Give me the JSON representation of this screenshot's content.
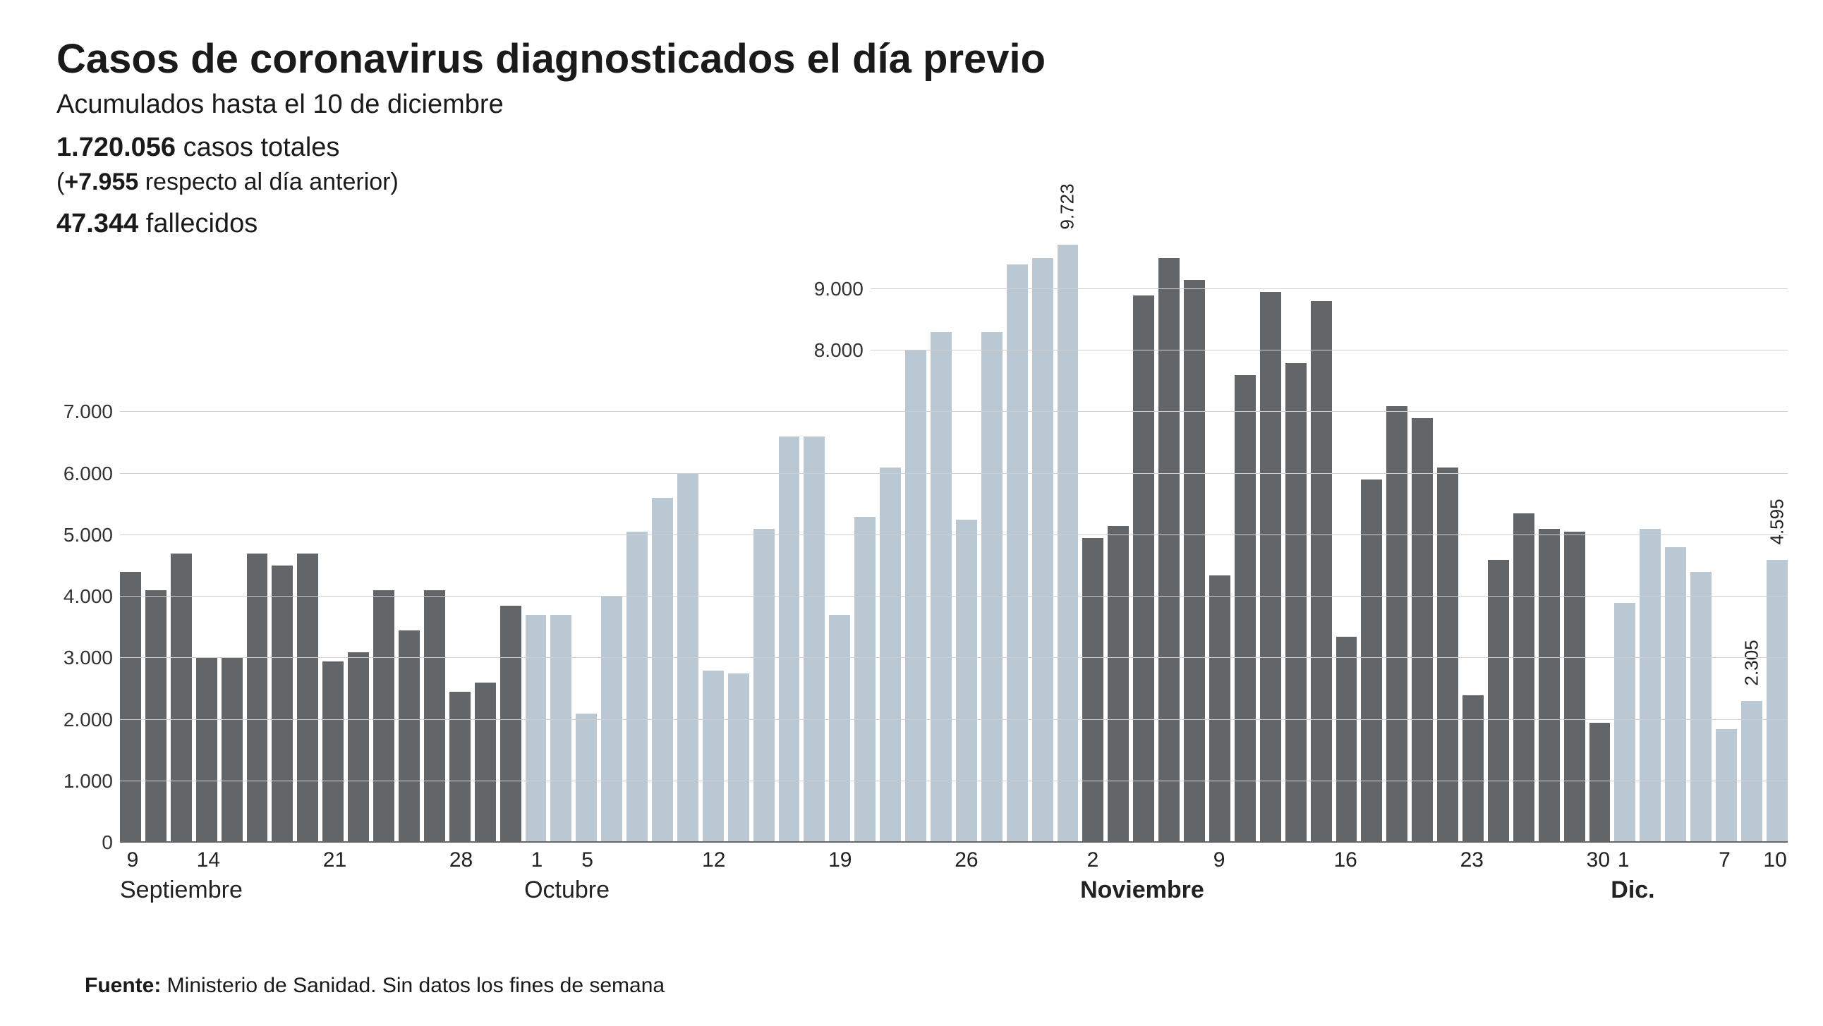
{
  "title": "Casos de coronavirus diagnosticados el día previo",
  "subtitle": "Acumulados hasta el 10 de diciembre",
  "total_cases": {
    "num": "1.720.056",
    "label": "casos totales"
  },
  "daily_change": {
    "prefix": "(",
    "num": "+7.955",
    "label": "respecto al día anterior)"
  },
  "deaths": {
    "num": "47.344",
    "label": "fallecidos"
  },
  "source": {
    "bold": "Fuente:",
    "text": "Ministerio de Sanidad. Sin datos los fines de semana"
  },
  "chart": {
    "type": "bar",
    "background_color": "#ffffff",
    "grid_color": "#d0d0d0",
    "baseline_color": "#666666",
    "bar_color_dark": "#636669",
    "bar_color_light": "#b9c8d3",
    "title_fontsize": 58,
    "label_fontsize": 28,
    "tick_fontsize": 30,
    "month_fontsize": 34,
    "ylim": [
      0,
      9800
    ],
    "left_y_ticks": [
      0,
      1000,
      2000,
      3000,
      4000,
      5000,
      6000,
      7000
    ],
    "left_y_tick_labels": [
      "0",
      "1.000",
      "2.000",
      "3.000",
      "4.000",
      "5.000",
      "6.000",
      "7.000"
    ],
    "float_y_ticks": [
      8000,
      9000
    ],
    "float_y_tick_labels": [
      "8.000",
      "9.000"
    ],
    "peak_label": "9.723",
    "last_two_labels": [
      "2.305",
      "4.595"
    ],
    "bars": [
      {
        "v": 4400,
        "c": "dark"
      },
      {
        "v": 4100,
        "c": "dark"
      },
      {
        "v": 4700,
        "c": "dark"
      },
      {
        "v": 3000,
        "c": "dark"
      },
      {
        "v": 3000,
        "c": "dark"
      },
      {
        "v": 4700,
        "c": "dark"
      },
      {
        "v": 4500,
        "c": "dark"
      },
      {
        "v": 4700,
        "c": "dark"
      },
      {
        "v": 2950,
        "c": "dark"
      },
      {
        "v": 3100,
        "c": "dark"
      },
      {
        "v": 4100,
        "c": "dark"
      },
      {
        "v": 3450,
        "c": "dark"
      },
      {
        "v": 4100,
        "c": "dark"
      },
      {
        "v": 2450,
        "c": "dark"
      },
      {
        "v": 2600,
        "c": "dark"
      },
      {
        "v": 3850,
        "c": "dark"
      },
      {
        "v": 3700,
        "c": "light"
      },
      {
        "v": 3700,
        "c": "light"
      },
      {
        "v": 2100,
        "c": "light"
      },
      {
        "v": 4000,
        "c": "light"
      },
      {
        "v": 5050,
        "c": "light"
      },
      {
        "v": 5600,
        "c": "light"
      },
      {
        "v": 6000,
        "c": "light"
      },
      {
        "v": 2800,
        "c": "light"
      },
      {
        "v": 2750,
        "c": "light"
      },
      {
        "v": 5100,
        "c": "light"
      },
      {
        "v": 6600,
        "c": "light"
      },
      {
        "v": 6600,
        "c": "light"
      },
      {
        "v": 3700,
        "c": "light"
      },
      {
        "v": 5300,
        "c": "light"
      },
      {
        "v": 6100,
        "c": "light"
      },
      {
        "v": 8000,
        "c": "light"
      },
      {
        "v": 8300,
        "c": "light"
      },
      {
        "v": 5250,
        "c": "light"
      },
      {
        "v": 8300,
        "c": "light"
      },
      {
        "v": 9400,
        "c": "light"
      },
      {
        "v": 9500,
        "c": "light"
      },
      {
        "v": 9723,
        "c": "light",
        "label": "peak"
      },
      {
        "v": 4950,
        "c": "dark"
      },
      {
        "v": 5150,
        "c": "dark"
      },
      {
        "v": 8900,
        "c": "dark"
      },
      {
        "v": 9500,
        "c": "dark"
      },
      {
        "v": 9150,
        "c": "dark"
      },
      {
        "v": 4350,
        "c": "dark"
      },
      {
        "v": 7600,
        "c": "dark"
      },
      {
        "v": 8950,
        "c": "dark"
      },
      {
        "v": 7800,
        "c": "dark"
      },
      {
        "v": 8800,
        "c": "dark"
      },
      {
        "v": 3350,
        "c": "dark"
      },
      {
        "v": 5900,
        "c": "dark"
      },
      {
        "v": 7100,
        "c": "dark"
      },
      {
        "v": 6900,
        "c": "dark"
      },
      {
        "v": 6100,
        "c": "dark"
      },
      {
        "v": 2400,
        "c": "dark"
      },
      {
        "v": 4600,
        "c": "dark"
      },
      {
        "v": 5350,
        "c": "dark"
      },
      {
        "v": 5100,
        "c": "dark"
      },
      {
        "v": 5050,
        "c": "dark"
      },
      {
        "v": 1950,
        "c": "dark"
      },
      {
        "v": 3900,
        "c": "light"
      },
      {
        "v": 5100,
        "c": "light"
      },
      {
        "v": 4800,
        "c": "light"
      },
      {
        "v": 4400,
        "c": "light"
      },
      {
        "v": 1850,
        "c": "light"
      },
      {
        "v": 2305,
        "c": "light",
        "label": "l1"
      },
      {
        "v": 4595,
        "c": "light",
        "label": "l2"
      }
    ],
    "x_day_ticks": [
      {
        "idx": 0,
        "label": "9"
      },
      {
        "idx": 3,
        "label": "14"
      },
      {
        "idx": 8,
        "label": "21"
      },
      {
        "idx": 13,
        "label": "28"
      },
      {
        "idx": 16,
        "label": "1"
      },
      {
        "idx": 18,
        "label": "5"
      },
      {
        "idx": 23,
        "label": "12"
      },
      {
        "idx": 28,
        "label": "19"
      },
      {
        "idx": 33,
        "label": "26"
      },
      {
        "idx": 38,
        "label": "2"
      },
      {
        "idx": 43,
        "label": "9"
      },
      {
        "idx": 48,
        "label": "16"
      },
      {
        "idx": 53,
        "label": "23"
      },
      {
        "idx": 58,
        "label": "30"
      },
      {
        "idx": 59,
        "label": "1"
      },
      {
        "idx": 63,
        "label": "7"
      },
      {
        "idx": 65,
        "label": "10"
      }
    ],
    "x_months": [
      {
        "idx": 0,
        "label": "Septiembre",
        "bold": false
      },
      {
        "idx": 16,
        "label": "Octubre",
        "bold": false
      },
      {
        "idx": 38,
        "label": "Noviembre",
        "bold": true
      },
      {
        "idx": 59,
        "label": "Dic.",
        "bold": true
      }
    ]
  }
}
